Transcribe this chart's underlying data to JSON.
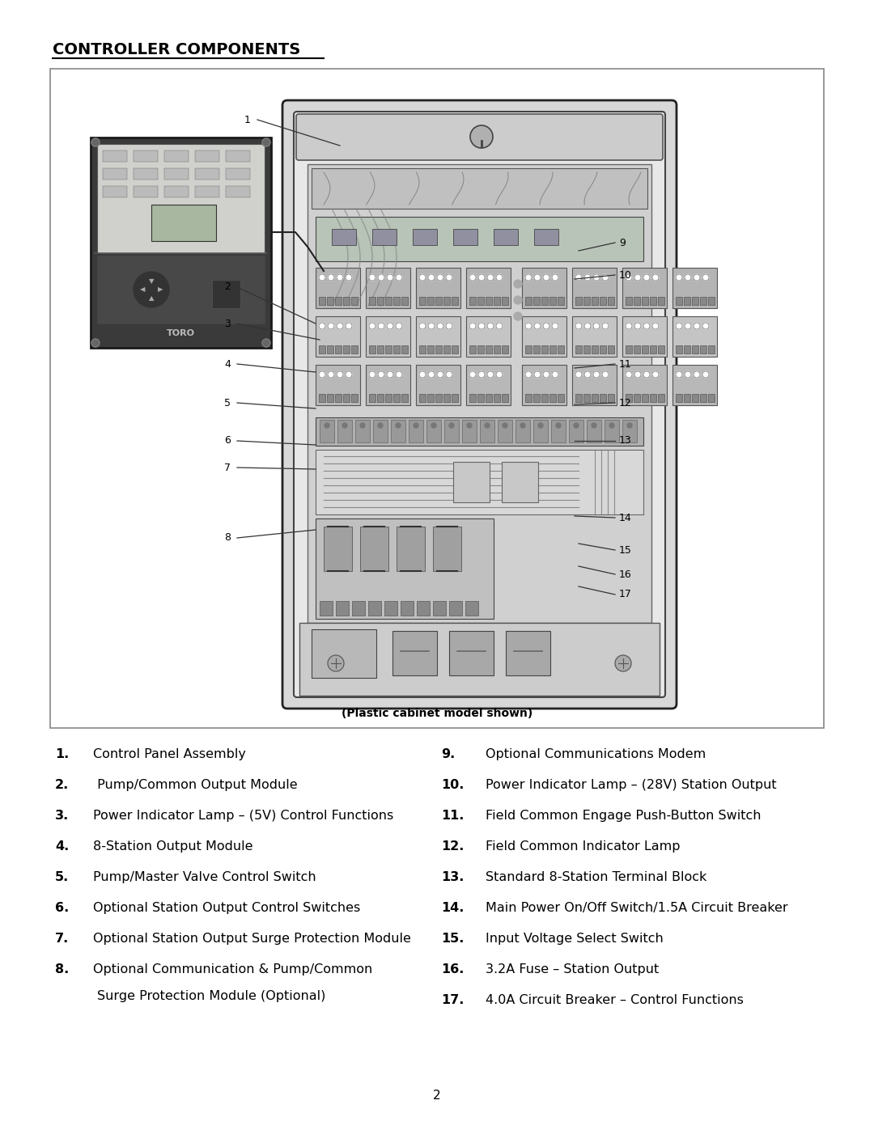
{
  "title": "CONTROLLER COMPONENTS",
  "bg_color": "#ffffff",
  "caption": "(Plastic cabinet model shown)",
  "page_number": "2",
  "left_items": [
    {
      "num": "1.",
      "text": "Control Panel Assembly"
    },
    {
      "num": "2.",
      "text": " Pump/Common Output Module"
    },
    {
      "num": "3.",
      "text": "Power Indicator Lamp – (5V) Control Functions"
    },
    {
      "num": "4.",
      "text": "8-Station Output Module"
    },
    {
      "num": "5.",
      "text": "Pump/Master Valve Control Switch"
    },
    {
      "num": "6.",
      "text": "Optional Station Output Control Switches"
    },
    {
      "num": "7.",
      "text": "Optional Station Output Surge Protection Module"
    },
    {
      "num": "8.",
      "text": "Optional Communication & Pump/Common",
      "text2": "Surge Protection Module (Optional)"
    }
  ],
  "right_items": [
    {
      "num": "9.",
      "text": "Optional Communications Modem"
    },
    {
      "num": "10.",
      "text": "Power Indicator Lamp – (28V) Station Output"
    },
    {
      "num": "11.",
      "text": "Field Common Engage Push-Button Switch"
    },
    {
      "num": "12.",
      "text": "Field Common Indicator Lamp"
    },
    {
      "num": "13.",
      "text": "Standard 8-Station Terminal Block"
    },
    {
      "num": "14.",
      "text": "Main Power On/Off Switch/1.5A Circuit Breaker"
    },
    {
      "num": "15.",
      "text": "Input Voltage Select Switch"
    },
    {
      "num": "16.",
      "text": "3.2A Fuse – Station Output"
    },
    {
      "num": "17.",
      "text": "4.0A Circuit Breaker – Control Functions"
    }
  ]
}
